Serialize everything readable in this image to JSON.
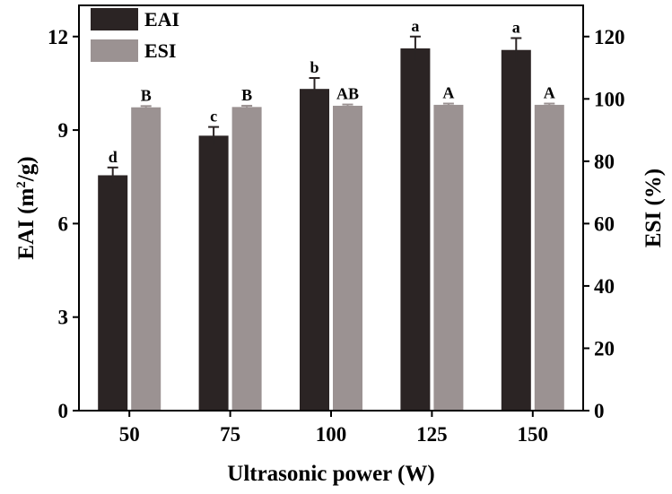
{
  "chart_data": {
    "type": "bar",
    "title": "",
    "xlabel": "Ultrasonic power (W)",
    "ylabel_left": {
      "main": "EAI (m",
      "sup": "2",
      "tail": "/g)"
    },
    "ylabel_right": "ESI (%)",
    "categories": [
      "50",
      "75",
      "100",
      "125",
      "150"
    ],
    "ylim_left": [
      0,
      13
    ],
    "ylim_right": [
      0,
      130
    ],
    "yticks_left": [
      "0",
      "3",
      "6",
      "9",
      "12"
    ],
    "yticks_right": [
      "0",
      "20",
      "40",
      "60",
      "80",
      "100",
      "120"
    ],
    "legend_position": "top-left",
    "series": [
      {
        "name": "EAI",
        "axis": "left",
        "color": "#2b2424",
        "values": [
          7.55,
          8.82,
          10.32,
          11.62,
          11.57
        ],
        "errors": [
          0.25,
          0.28,
          0.35,
          0.38,
          0.38
        ],
        "letters": [
          "d",
          "c",
          "b",
          "a",
          "a"
        ]
      },
      {
        "name": "ESI",
        "axis": "right",
        "color": "#9b9292",
        "values": [
          97.3,
          97.4,
          97.8,
          98.1,
          98.1
        ],
        "errors": [
          0.4,
          0.4,
          0.4,
          0.4,
          0.4
        ],
        "letters": [
          "B",
          "B",
          "AB",
          "A",
          "A"
        ]
      }
    ]
  }
}
